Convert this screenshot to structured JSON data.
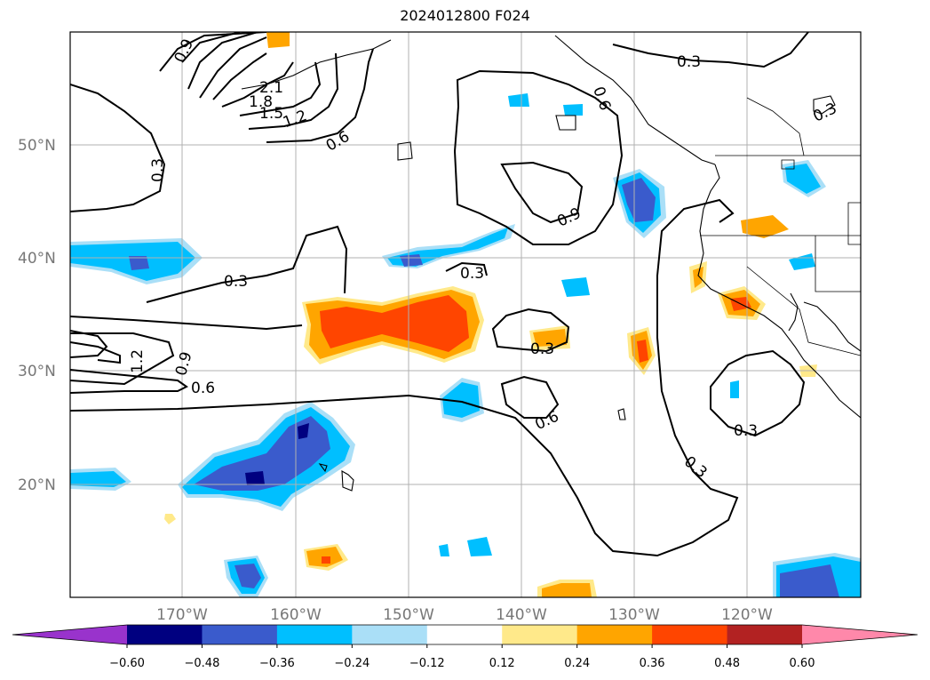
{
  "title": "2024012800 F024",
  "map": {
    "lat_labels": [
      "50°N",
      "40°N",
      "30°N",
      "20°N"
    ],
    "lon_labels": [
      "170°W",
      "160°W",
      "150°W",
      "140°W",
      "130°W",
      "120°W"
    ],
    "contour_labels": [
      "0.9",
      "2.1",
      "1.8",
      "1.5",
      "1.2",
      "0.6",
      "0.3",
      "0.3",
      "0.3",
      "0.9",
      "0.6",
      "0.3",
      "0.3",
      "1.2",
      "0.9",
      "0.6",
      "0.3",
      "0.6",
      "0.3",
      "0.3",
      "0.3"
    ]
  },
  "colorbar": {
    "ticks": [
      "−0.60",
      "−0.48",
      "−0.36",
      "−0.24",
      "−0.12",
      "0.12",
      "0.24",
      "0.36",
      "0.48",
      "0.60"
    ],
    "colors": [
      "#9933cc",
      "#000080",
      "#3a5bcc",
      "#00bfff",
      "#aadff7",
      "#ffffff",
      "#ffe98a",
      "#ffa500",
      "#ff4500",
      "#b22222",
      "#ff88aa"
    ]
  }
}
